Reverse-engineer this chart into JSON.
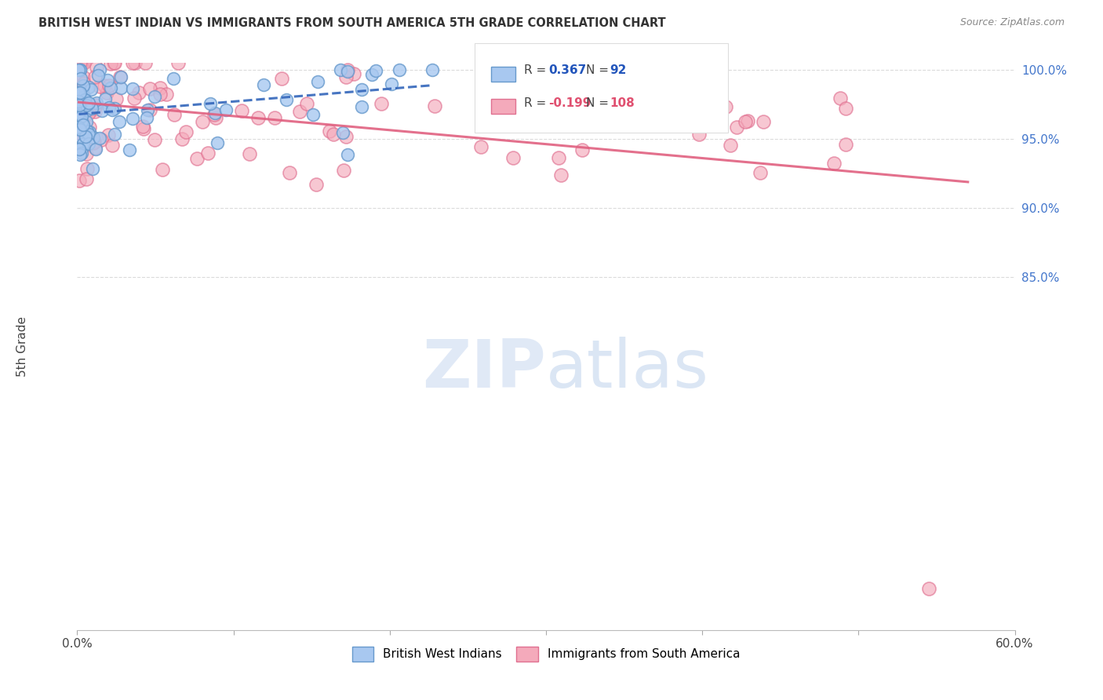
{
  "title": "BRITISH WEST INDIAN VS IMMIGRANTS FROM SOUTH AMERICA 5TH GRADE CORRELATION CHART",
  "source": "Source: ZipAtlas.com",
  "ylabel": "5th Grade",
  "r_blue": 0.367,
  "n_blue": 92,
  "r_pink": -0.199,
  "n_pink": 108,
  "blue_color": "#A8C8F0",
  "blue_edge": "#6699CC",
  "pink_color": "#F4AABB",
  "pink_edge": "#E07090",
  "blue_line_color": "#3366BB",
  "pink_line_color": "#E06080",
  "watermark_zip_color": "#C8D8F0",
  "watermark_atlas_color": "#B0C8E8",
  "background_color": "#FFFFFF",
  "grid_color": "#CCCCCC",
  "xlim": [
    0.0,
    0.6
  ],
  "ylim": [
    0.595,
    1.005
  ],
  "yticks": [
    1.0,
    0.95,
    0.9,
    0.85
  ],
  "ytick_labels": [
    "100.0%",
    "95.0%",
    "90.0%",
    "85.0%"
  ],
  "xtick_vals": [
    0.0,
    0.1,
    0.2,
    0.3,
    0.4,
    0.5,
    0.6
  ],
  "xtick_labels": [
    "0.0%",
    "",
    "",
    "",
    "",
    "",
    "60.0%"
  ],
  "legend_bottom_labels": [
    "British West Indians",
    "Immigrants from South America"
  ]
}
